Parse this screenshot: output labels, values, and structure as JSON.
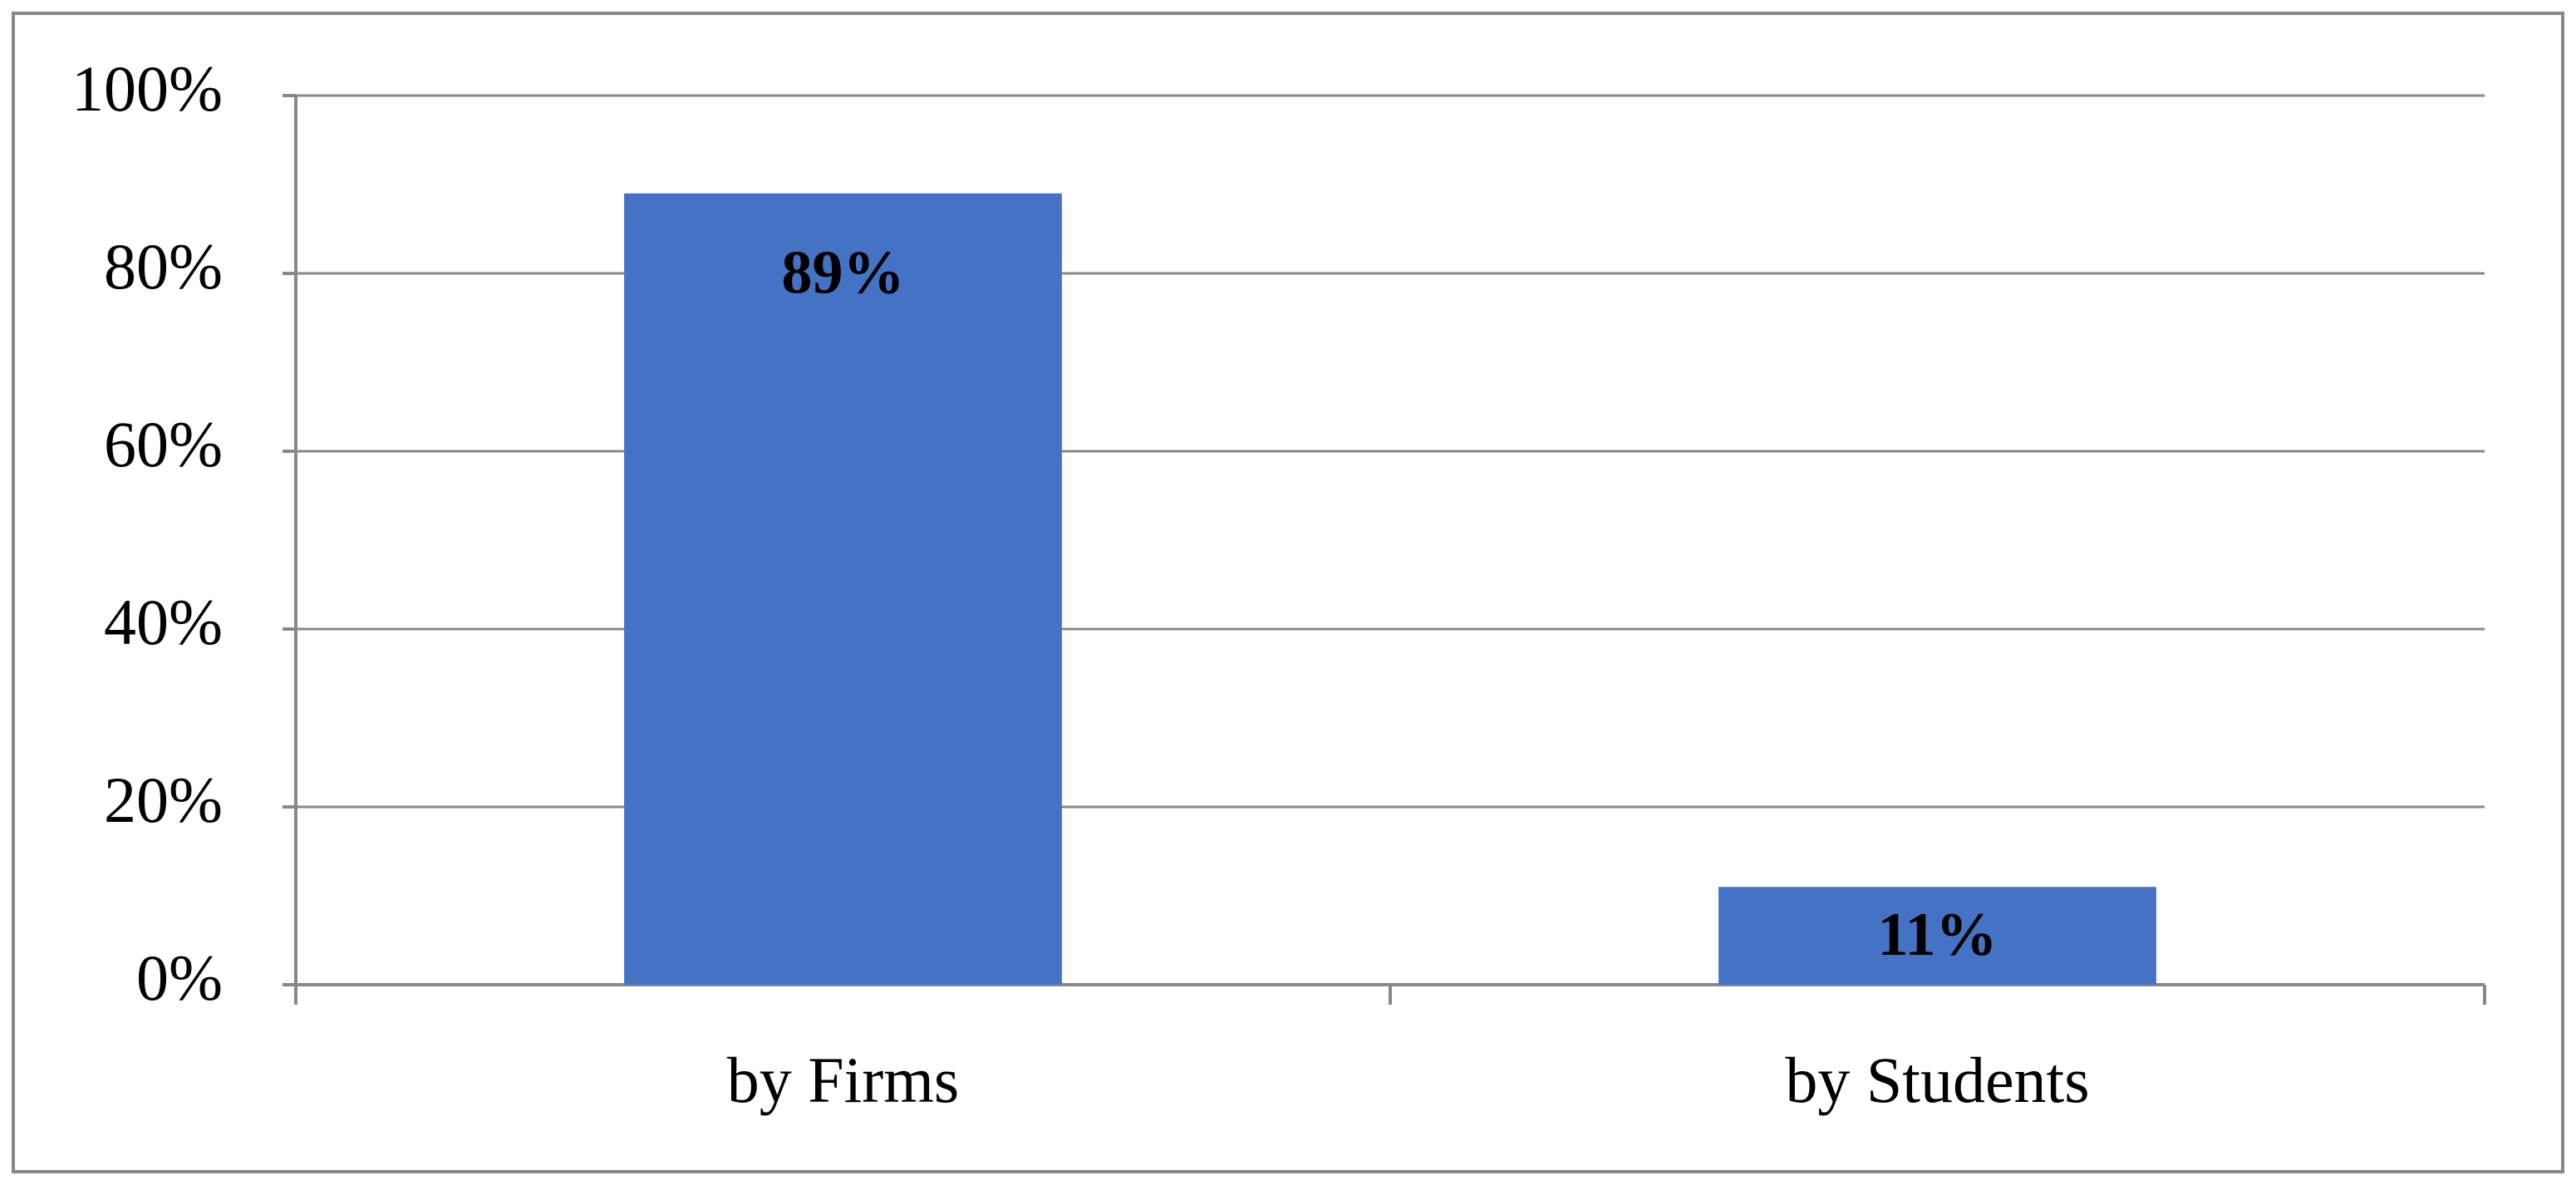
{
  "chart_data": {
    "type": "bar",
    "categories": [
      "by Firms",
      "by Students"
    ],
    "values": [
      89,
      11
    ],
    "value_labels": [
      "89%",
      "11%"
    ],
    "color": "#4472c4",
    "ylim": [
      0,
      100
    ],
    "yticks": [
      {
        "value": 0,
        "label": "0%"
      },
      {
        "value": 20,
        "label": "20%"
      },
      {
        "value": 40,
        "label": "40%"
      },
      {
        "value": 60,
        "label": "60%"
      },
      {
        "value": 80,
        "label": "80%"
      },
      {
        "value": 100,
        "label": "100%"
      }
    ],
    "grid": true
  }
}
